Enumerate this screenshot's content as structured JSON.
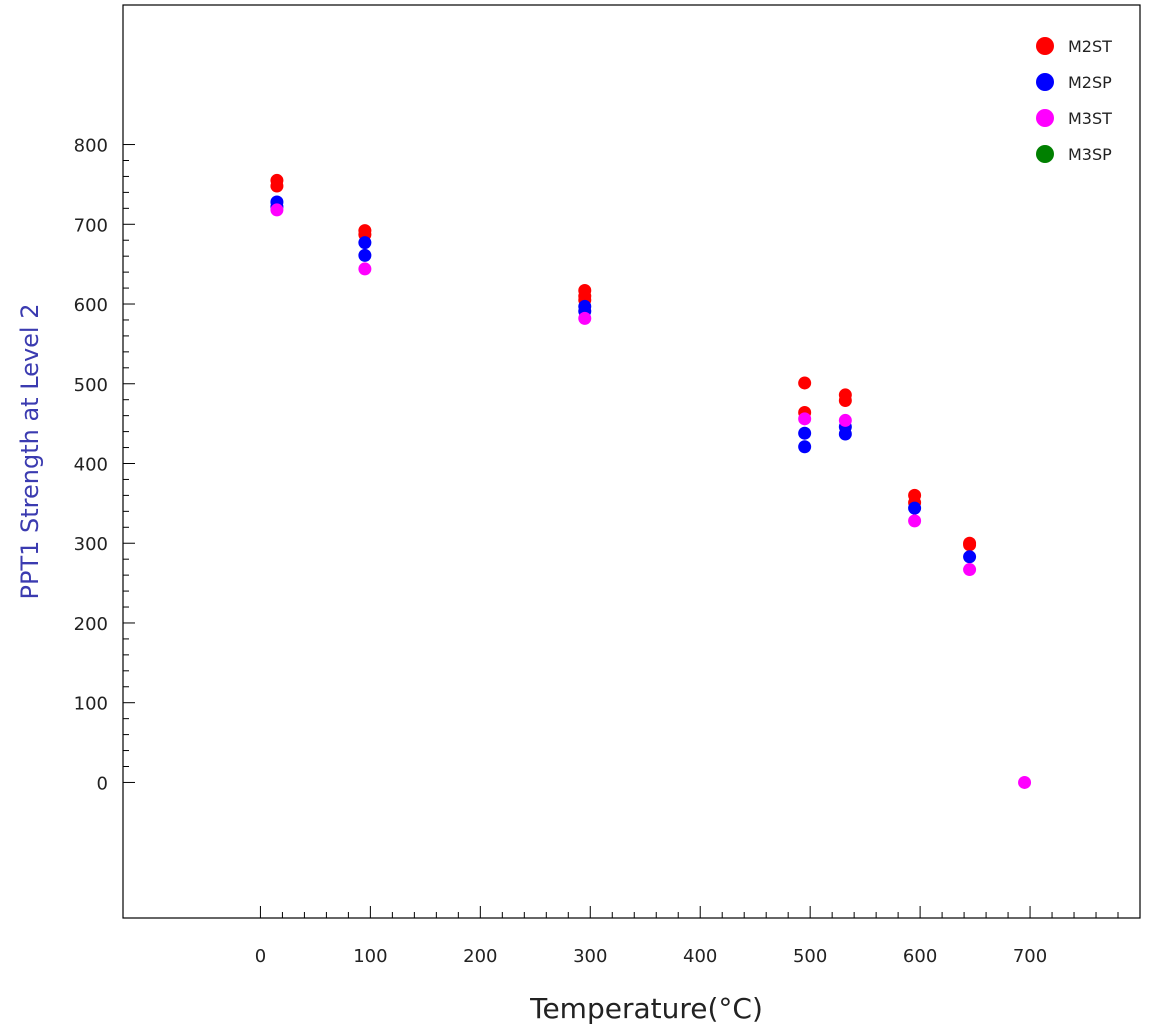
{
  "chart_data": {
    "type": "scatter",
    "title": "",
    "xlabel": "Temperature(°C)",
    "ylabel": "PPT1 Strength at Level 2",
    "xlim": [
      -125,
      800
    ],
    "ylim": [
      -170,
      975
    ],
    "x_ticks": [
      0,
      100,
      200,
      300,
      400,
      500,
      600,
      700
    ],
    "y_ticks": [
      0,
      100,
      200,
      300,
      400,
      500,
      600,
      700,
      800
    ],
    "grid": false,
    "legend_position": "top-right",
    "ylabel_color": "#3b3bb0",
    "series": [
      {
        "name": "M2ST",
        "color": "#ff0000",
        "points": [
          [
            15,
            755
          ],
          [
            15,
            748
          ],
          [
            95,
            692
          ],
          [
            95,
            687
          ],
          [
            295,
            617
          ],
          [
            295,
            610
          ],
          [
            295,
            605
          ],
          [
            495,
            501
          ],
          [
            495,
            464
          ],
          [
            532,
            486
          ],
          [
            532,
            479
          ],
          [
            595,
            360
          ],
          [
            595,
            351
          ],
          [
            645,
            300
          ],
          [
            645,
            298
          ]
        ]
      },
      {
        "name": "M2SP",
        "color": "#0000ff",
        "points": [
          [
            15,
            728
          ],
          [
            15,
            722
          ],
          [
            95,
            677
          ],
          [
            95,
            661
          ],
          [
            295,
            597
          ],
          [
            295,
            591
          ],
          [
            495,
            438
          ],
          [
            495,
            421
          ],
          [
            532,
            446
          ],
          [
            532,
            437
          ],
          [
            595,
            344
          ],
          [
            645,
            283
          ]
        ]
      },
      {
        "name": "M3ST",
        "color": "#ff00ff",
        "points": [
          [
            15,
            718
          ],
          [
            95,
            644
          ],
          [
            295,
            582
          ],
          [
            495,
            456
          ],
          [
            532,
            454
          ],
          [
            595,
            328
          ],
          [
            645,
            267
          ],
          [
            695,
            0
          ]
        ]
      },
      {
        "name": "M3SP",
        "color": "#008000",
        "points": []
      }
    ]
  }
}
